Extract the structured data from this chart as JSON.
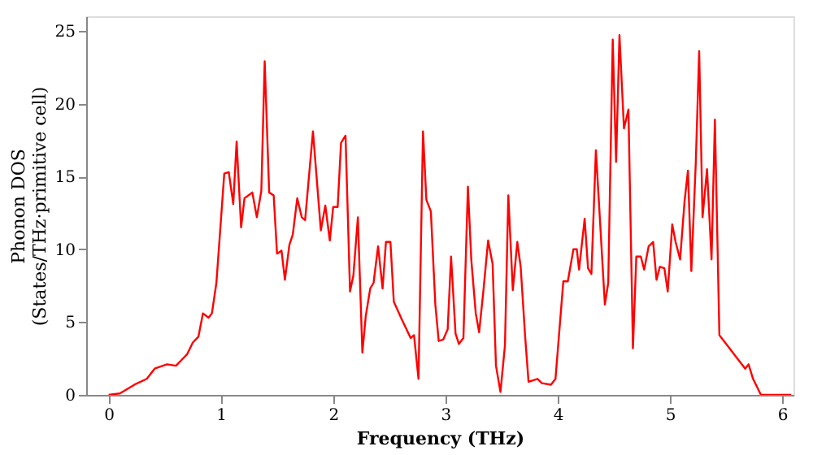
{
  "chart_data": {
    "type": "line",
    "xlabel": "Frequency (THz)",
    "ylabel": "Phonon DOS\n(States/THz·primitive cell)",
    "xlim": [
      -0.2,
      6.1
    ],
    "xticks": [
      0,
      1,
      2,
      3,
      4,
      5,
      6
    ],
    "ylim": [
      0,
      26
    ],
    "yticks": [
      0,
      5,
      10,
      15,
      20,
      25
    ],
    "grid": false,
    "marker": "none",
    "line_style": "solid",
    "series": [
      {
        "color": "#ff0000",
        "x": [
          0,
          0.1,
          0.23,
          0.34,
          0.41,
          0.52,
          0.6,
          0.65,
          0.7,
          0.75,
          0.8,
          0.84,
          0.89,
          0.92,
          0.96,
          1.03,
          1.07,
          1.11,
          1.14,
          1.18,
          1.21,
          1.28,
          1.32,
          1.36,
          1.39,
          1.43,
          1.47,
          1.5,
          1.54,
          1.57,
          1.61,
          1.64,
          1.68,
          1.72,
          1.75,
          1.82,
          1.89,
          1.93,
          1.97,
          2.0,
          2.04,
          2.07,
          2.11,
          2.15,
          2.18,
          2.22,
          2.26,
          2.29,
          2.33,
          2.36,
          2.4,
          2.44,
          2.47,
          2.51,
          2.54,
          2.61,
          2.69,
          2.72,
          2.76,
          2.8,
          2.83,
          2.87,
          2.91,
          2.94,
          2.98,
          3.02,
          3.05,
          3.09,
          3.12,
          3.16,
          3.2,
          3.23,
          3.27,
          3.3,
          3.34,
          3.38,
          3.42,
          3.45,
          3.49,
          3.53,
          3.56,
          3.6,
          3.64,
          3.67,
          3.71,
          3.74,
          3.82,
          3.86,
          3.94,
          3.98,
          4.05,
          4.09,
          4.14,
          4.17,
          4.19,
          4.24,
          4.27,
          4.3,
          4.34,
          4.42,
          4.45,
          4.49,
          4.52,
          4.55,
          4.59,
          4.63,
          4.67,
          4.7,
          4.74,
          4.77,
          4.81,
          4.85,
          4.88,
          4.91,
          4.95,
          4.98,
          5.02,
          5.05,
          5.09,
          5.13,
          5.16,
          5.19,
          5.23,
          5.26,
          5.29,
          5.33,
          5.37,
          5.4,
          5.44,
          5.51,
          5.59,
          5.67,
          5.7,
          5.74,
          5.81,
          6.08
        ],
        "values": [
          0,
          0.1,
          0.7,
          1.1,
          1.8,
          2.1,
          2.0,
          2.4,
          2.8,
          3.6,
          4.0,
          5.6,
          5.3,
          5.6,
          7.7,
          15.2,
          15.3,
          13.1,
          17.4,
          11.5,
          13.5,
          13.9,
          12.2,
          14,
          22.9,
          13.9,
          13.7,
          9.7,
          9.9,
          7.9,
          10.3,
          11,
          13.5,
          12.2,
          12,
          18.1,
          11.3,
          13,
          10.6,
          12.9,
          12.9,
          17.3,
          17.8,
          7.1,
          8.2,
          12.2,
          2.9,
          5.4,
          7.3,
          7.7,
          10.2,
          7.3,
          10.5,
          10.5,
          6.4,
          5.2,
          3.9,
          4.1,
          1.1,
          18.1,
          13.4,
          12.6,
          6.2,
          3.7,
          3.8,
          4.5,
          9.5,
          4.2,
          3.5,
          3.9,
          14.3,
          9.3,
          5.6,
          4.3,
          7.3,
          10.6,
          9,
          2,
          0.2,
          3.4,
          13.7,
          7.2,
          10.5,
          8.8,
          4,
          0.9,
          1.1,
          0.8,
          0.7,
          1.1,
          7.8,
          7.8,
          10,
          10,
          8.6,
          12.1,
          8.7,
          8.3,
          16.8,
          6.2,
          7.7,
          24.4,
          16,
          24.7,
          18.3,
          19.6,
          3.2,
          9.5,
          9.5,
          8.6,
          10.2,
          10.5,
          7.9,
          8.8,
          8.7,
          7.1,
          11.7,
          10.5,
          9.3,
          13.3,
          15.4,
          8.5,
          16,
          23.6,
          12.2,
          15.5,
          9.3,
          18.9,
          4.1,
          3.4,
          2.6,
          1.8,
          2.1,
          1.1,
          0,
          0
        ]
      }
    ]
  }
}
